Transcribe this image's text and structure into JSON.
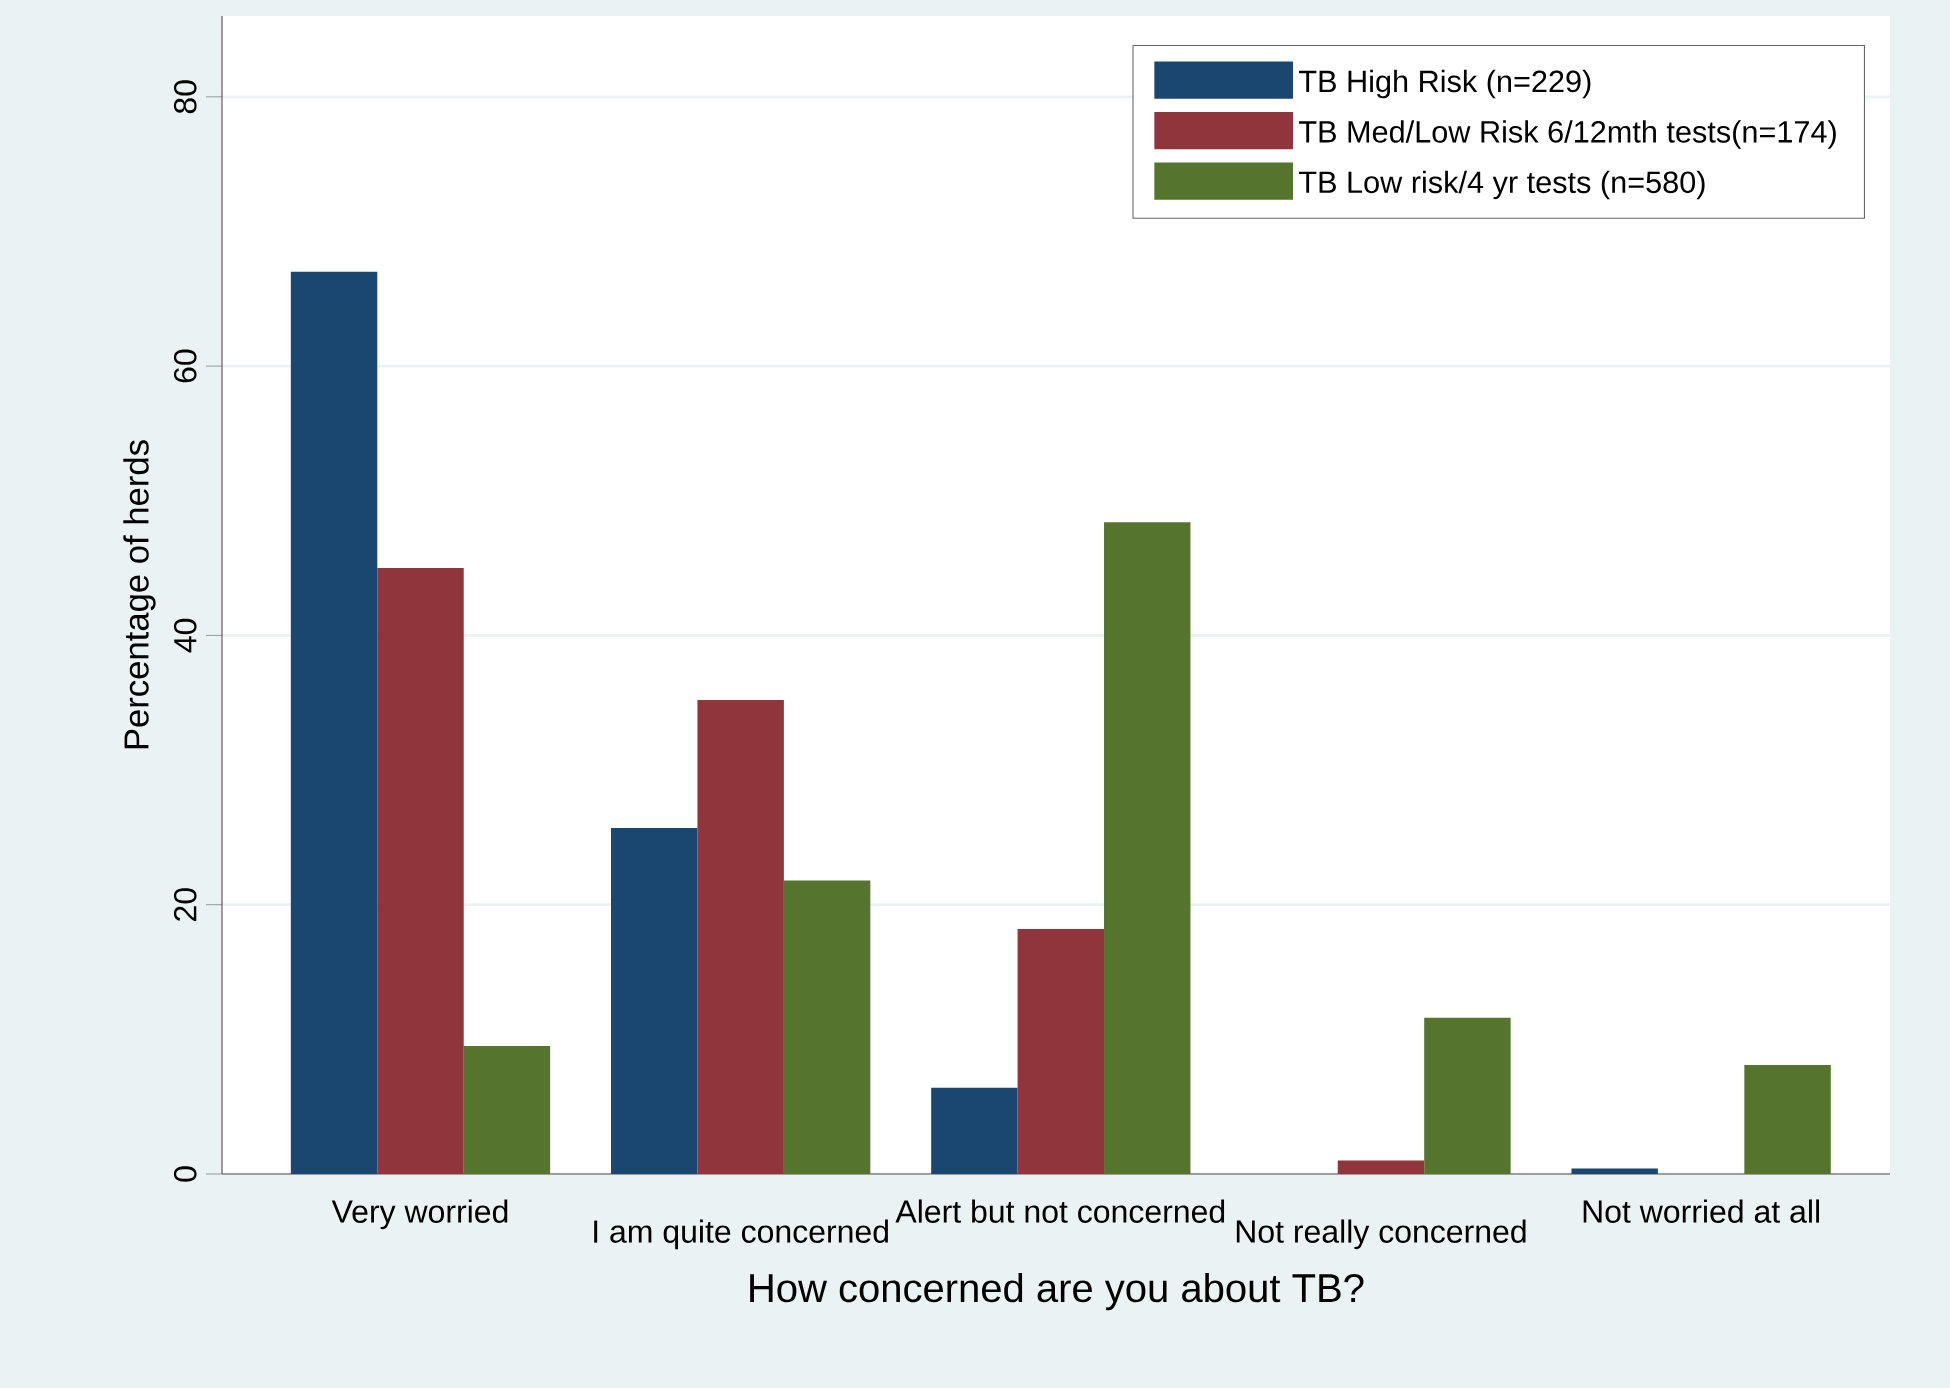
{
  "chart_data": {
    "type": "bar",
    "xlabel": "How concerned are you about TB?",
    "ylabel": "Percentage of herds",
    "categories": [
      "Very worried",
      "I am quite concerned",
      "Alert but not concerned",
      "Not really concerned",
      "Not worried at all"
    ],
    "series": [
      {
        "name": "TB High Risk (n=229)",
        "color": "#1a476f",
        "values": [
          67.0,
          25.7,
          6.4,
          0,
          0.4
        ]
      },
      {
        "name": "TB Med/Low Risk 6/12mth tests(n=174)",
        "color": "#90353b",
        "values": [
          45.0,
          35.2,
          18.2,
          1.0,
          0
        ]
      },
      {
        "name": "TB Low risk/4 yr tests (n=580)",
        "color": "#55752f",
        "values": [
          9.5,
          21.8,
          48.4,
          11.6,
          8.1
        ]
      }
    ],
    "ylim": [
      0,
      86
    ],
    "yticks": [
      0,
      20,
      40,
      60,
      80
    ],
    "grid": "y",
    "legend": "top right"
  }
}
